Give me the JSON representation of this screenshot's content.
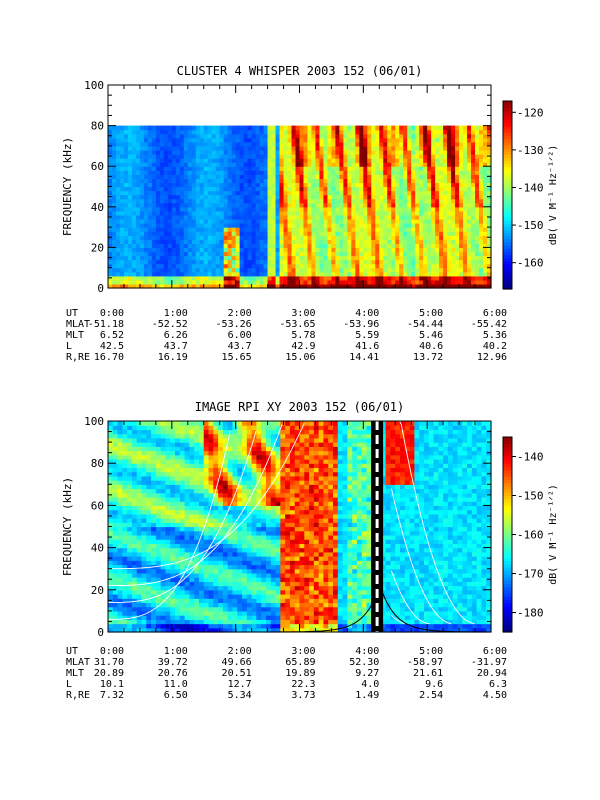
{
  "chart_data": [
    {
      "type": "heatmap",
      "title": "CLUSTER 4 WHISPER 2003 152 (06/01)",
      "ylabel": "FREQUENCY (kHz)",
      "ylim": [
        0,
        100
      ],
      "y_ticks": [
        "0",
        "20",
        "40",
        "60",
        "80",
        "100"
      ],
      "x_ticks": [
        "0:00",
        "1:00",
        "2:00",
        "3:00",
        "4:00",
        "5:00",
        "6:00"
      ],
      "data_max_frequency_khz": 80,
      "colorbar": {
        "label": "dB( V M⁻¹ Hz⁻¹ᐟ²)",
        "range": [
          -167,
          -117
        ],
        "ticks": [
          "-120",
          "-130",
          "-140",
          "-150",
          "-160"
        ]
      },
      "ephemeris": [
        {
          "label": "UT",
          "values": [
            "0:00",
            "1:00",
            "2:00",
            "3:00",
            "4:00",
            "5:00",
            "6:00"
          ]
        },
        {
          "label": "MLAT",
          "values": [
            "-51.18",
            "-52.52",
            "-53.26",
            "-53.65",
            "-53.96",
            "-54.44",
            "-55.42"
          ]
        },
        {
          "label": "MLT",
          "values": [
            "6.52",
            "6.26",
            "6.00",
            "5.78",
            "5.59",
            "5.46",
            "5.36"
          ]
        },
        {
          "label": "L",
          "values": [
            "42.5",
            "43.7",
            "43.7",
            "42.9",
            "41.6",
            "40.6",
            "40.2"
          ]
        },
        {
          "label": "R,RE",
          "values": [
            "16.70",
            "16.19",
            "15.65",
            "15.06",
            "14.41",
            "13.72",
            "12.96"
          ]
        }
      ]
    },
    {
      "type": "heatmap",
      "title": "IMAGE RPI XY 2003 152 (06/01)",
      "ylabel": "FREQUENCY (kHz)",
      "ylim": [
        0,
        100
      ],
      "y_ticks": [
        "0",
        "20",
        "40",
        "60",
        "80",
        "100"
      ],
      "x_ticks": [
        "0:00",
        "1:00",
        "2:00",
        "3:00",
        "4:00",
        "5:00",
        "6:00"
      ],
      "colorbar": {
        "label": "dB( V M⁻¹ Hz⁻¹ᐟ²)",
        "range": [
          -185,
          -135
        ],
        "ticks": [
          "-140",
          "-150",
          "-160",
          "-170",
          "-180"
        ]
      },
      "ephemeris": [
        {
          "label": "UT",
          "values": [
            "0:00",
            "1:00",
            "2:00",
            "3:00",
            "4:00",
            "5:00",
            "6:00"
          ]
        },
        {
          "label": "MLAT",
          "values": [
            "31.70",
            "39.72",
            "49.66",
            "65.89",
            "52.30",
            "-58.97",
            "-31.97"
          ]
        },
        {
          "label": "MLT",
          "values": [
            "20.89",
            "20.76",
            "20.51",
            "19.89",
            "9.27",
            "21.61",
            "20.94"
          ]
        },
        {
          "label": "L",
          "values": [
            "10.1",
            "11.0",
            "12.7",
            "22.3",
            "4.0",
            "9.6",
            "6.3"
          ]
        },
        {
          "label": "R,RE",
          "values": [
            "7.32",
            "6.50",
            "5.34",
            "3.73",
            "1.49",
            "2.54",
            "4.50"
          ]
        }
      ]
    }
  ]
}
